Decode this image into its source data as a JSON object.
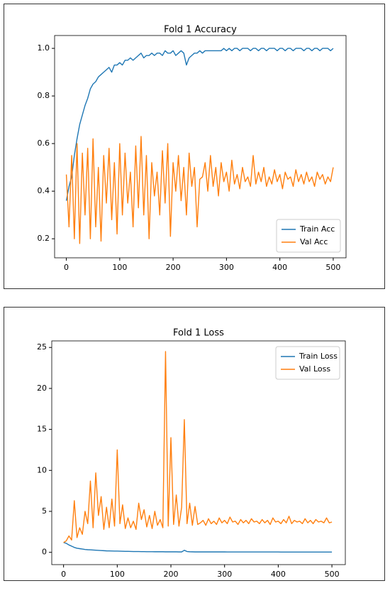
{
  "chart_data": [
    {
      "type": "line",
      "title": "Fold 1 Accuracy",
      "legend": "lower right",
      "grid": false,
      "x": [
        0,
        5,
        10,
        15,
        20,
        25,
        30,
        35,
        40,
        45,
        50,
        55,
        60,
        65,
        70,
        75,
        80,
        85,
        90,
        95,
        100,
        105,
        110,
        115,
        120,
        125,
        130,
        135,
        140,
        145,
        150,
        155,
        160,
        165,
        170,
        175,
        180,
        185,
        190,
        195,
        200,
        205,
        210,
        215,
        220,
        225,
        230,
        235,
        240,
        245,
        250,
        255,
        260,
        265,
        270,
        275,
        280,
        285,
        290,
        295,
        300,
        305,
        310,
        315,
        320,
        325,
        330,
        335,
        340,
        345,
        350,
        355,
        360,
        365,
        370,
        375,
        380,
        385,
        390,
        395,
        400,
        405,
        410,
        415,
        420,
        425,
        430,
        435,
        440,
        445,
        450,
        455,
        460,
        465,
        470,
        475,
        480,
        485,
        490,
        495,
        500
      ],
      "xlim": [
        -22,
        524
      ],
      "xticks": [
        0,
        100,
        200,
        300,
        400,
        500
      ],
      "ylim": [
        0.12,
        1.054
      ],
      "yticks": [
        0.2,
        0.4,
        0.6,
        0.8,
        {
          "value": 1,
          "label": "1.0"
        }
      ],
      "series": [
        {
          "name": "Train Acc",
          "color": "#1f77b4",
          "values": [
            0.36,
            0.42,
            0.46,
            0.55,
            0.62,
            0.68,
            0.72,
            0.76,
            0.79,
            0.83,
            0.85,
            0.86,
            0.88,
            0.89,
            0.9,
            0.91,
            0.92,
            0.9,
            0.93,
            0.93,
            0.94,
            0.93,
            0.95,
            0.95,
            0.96,
            0.95,
            0.96,
            0.97,
            0.98,
            0.96,
            0.97,
            0.97,
            0.98,
            0.97,
            0.98,
            0.98,
            0.97,
            0.99,
            0.98,
            0.98,
            0.99,
            0.97,
            0.98,
            0.99,
            0.98,
            0.93,
            0.96,
            0.97,
            0.98,
            0.98,
            0.99,
            0.98,
            0.99,
            0.99,
            0.99,
            0.99,
            0.99,
            0.99,
            0.99,
            1.0,
            0.99,
            1.0,
            0.99,
            1.0,
            1.0,
            0.99,
            1.0,
            1.0,
            1.0,
            0.99,
            1.0,
            1.0,
            0.99,
            1.0,
            1.0,
            0.99,
            1.0,
            1.0,
            1.0,
            0.99,
            1.0,
            1.0,
            0.99,
            1.0,
            1.0,
            0.99,
            1.0,
            1.0,
            1.0,
            0.99,
            1.0,
            1.0,
            0.99,
            1.0,
            1.0,
            0.99,
            1.0,
            1.0,
            1.0,
            0.99,
            1.0
          ]
        },
        {
          "name": "Val Acc",
          "color": "#ff7f0e",
          "values": [
            0.47,
            0.25,
            0.55,
            0.2,
            0.6,
            0.18,
            0.56,
            0.3,
            0.58,
            0.2,
            0.62,
            0.25,
            0.5,
            0.19,
            0.55,
            0.35,
            0.58,
            0.28,
            0.52,
            0.22,
            0.6,
            0.3,
            0.56,
            0.35,
            0.48,
            0.25,
            0.59,
            0.33,
            0.63,
            0.3,
            0.55,
            0.2,
            0.52,
            0.38,
            0.48,
            0.3,
            0.57,
            0.35,
            0.6,
            0.21,
            0.52,
            0.4,
            0.55,
            0.36,
            0.5,
            0.3,
            0.56,
            0.42,
            0.5,
            0.25,
            0.45,
            0.46,
            0.52,
            0.4,
            0.55,
            0.42,
            0.5,
            0.38,
            0.52,
            0.44,
            0.48,
            0.4,
            0.53,
            0.43,
            0.47,
            0.41,
            0.5,
            0.44,
            0.46,
            0.42,
            0.55,
            0.43,
            0.48,
            0.44,
            0.5,
            0.42,
            0.46,
            0.43,
            0.49,
            0.44,
            0.47,
            0.41,
            0.48,
            0.45,
            0.46,
            0.42,
            0.49,
            0.44,
            0.47,
            0.43,
            0.48,
            0.44,
            0.46,
            0.42,
            0.48,
            0.45,
            0.47,
            0.43,
            0.46,
            0.44,
            0.5
          ]
        }
      ]
    },
    {
      "type": "line",
      "title": "Fold 1 Loss",
      "legend": "upper right",
      "grid": false,
      "x": [
        0,
        5,
        10,
        15,
        20,
        25,
        30,
        35,
        40,
        45,
        50,
        55,
        60,
        65,
        70,
        75,
        80,
        85,
        90,
        95,
        100,
        105,
        110,
        115,
        120,
        125,
        130,
        135,
        140,
        145,
        150,
        155,
        160,
        165,
        170,
        175,
        180,
        185,
        190,
        195,
        200,
        205,
        210,
        215,
        220,
        225,
        230,
        235,
        240,
        245,
        250,
        255,
        260,
        265,
        270,
        275,
        280,
        285,
        290,
        295,
        300,
        305,
        310,
        315,
        320,
        325,
        330,
        335,
        340,
        345,
        350,
        355,
        360,
        365,
        370,
        375,
        380,
        385,
        390,
        395,
        400,
        405,
        410,
        415,
        420,
        425,
        430,
        435,
        440,
        445,
        450,
        455,
        460,
        465,
        470,
        475,
        480,
        485,
        490,
        495,
        500
      ],
      "xlim": [
        -22,
        525
      ],
      "xticks": [
        0,
        100,
        200,
        300,
        400,
        500
      ],
      "ylim": [
        -1.5,
        25.8
      ],
      "yticks": [
        0,
        5,
        10,
        15,
        20,
        25
      ],
      "series": [
        {
          "name": "Train Loss",
          "color": "#1f77b4",
          "values": [
            1.2,
            1.1,
            0.9,
            0.75,
            0.6,
            0.5,
            0.45,
            0.4,
            0.35,
            0.32,
            0.3,
            0.28,
            0.26,
            0.24,
            0.22,
            0.2,
            0.18,
            0.17,
            0.16,
            0.15,
            0.15,
            0.14,
            0.13,
            0.12,
            0.12,
            0.11,
            0.1,
            0.1,
            0.1,
            0.09,
            0.09,
            0.08,
            0.08,
            0.08,
            0.07,
            0.07,
            0.07,
            0.07,
            0.06,
            0.06,
            0.06,
            0.06,
            0.06,
            0.05,
            0.05,
            0.25,
            0.1,
            0.07,
            0.06,
            0.05,
            0.05,
            0.05,
            0.05,
            0.05,
            0.05,
            0.05,
            0.05,
            0.05,
            0.05,
            0.05,
            0.05,
            0.04,
            0.04,
            0.04,
            0.04,
            0.04,
            0.04,
            0.04,
            0.04,
            0.04,
            0.04,
            0.04,
            0.04,
            0.04,
            0.04,
            0.04,
            0.04,
            0.04,
            0.04,
            0.04,
            0.04,
            0.03,
            0.03,
            0.03,
            0.03,
            0.03,
            0.03,
            0.03,
            0.03,
            0.03,
            0.03,
            0.03,
            0.03,
            0.03,
            0.03,
            0.03,
            0.03,
            0.03,
            0.03,
            0.03,
            0.03
          ]
        },
        {
          "name": "Val Loss",
          "color": "#ff7f0e",
          "values": [
            1.2,
            1.4,
            2.0,
            1.5,
            6.3,
            1.8,
            3.0,
            2.2,
            5.0,
            3.5,
            8.7,
            3.0,
            9.7,
            4.5,
            6.8,
            2.8,
            5.5,
            3.0,
            6.5,
            3.2,
            12.5,
            3.5,
            5.8,
            2.9,
            4.2,
            3.0,
            3.8,
            2.8,
            6.0,
            4.0,
            5.2,
            3.1,
            4.5,
            2.9,
            5.0,
            3.3,
            4.0,
            3.0,
            24.5,
            3.2,
            14.0,
            3.4,
            7.0,
            3.2,
            5.5,
            16.2,
            3.5,
            6.0,
            3.3,
            5.6,
            3.4,
            3.6,
            3.9,
            3.3,
            4.1,
            3.5,
            3.8,
            3.4,
            4.2,
            3.6,
            3.9,
            3.5,
            4.3,
            3.7,
            3.8,
            3.4,
            4.0,
            3.6,
            3.9,
            3.5,
            4.1,
            3.7,
            3.8,
            3.5,
            4.0,
            3.6,
            3.9,
            3.4,
            4.2,
            3.7,
            3.8,
            3.5,
            4.0,
            3.6,
            4.4,
            3.5,
            3.9,
            3.7,
            3.8,
            3.5,
            4.1,
            3.6,
            3.9,
            3.5,
            4.0,
            3.7,
            3.8,
            3.6,
            4.2,
            3.6,
            3.7
          ]
        }
      ]
    }
  ]
}
